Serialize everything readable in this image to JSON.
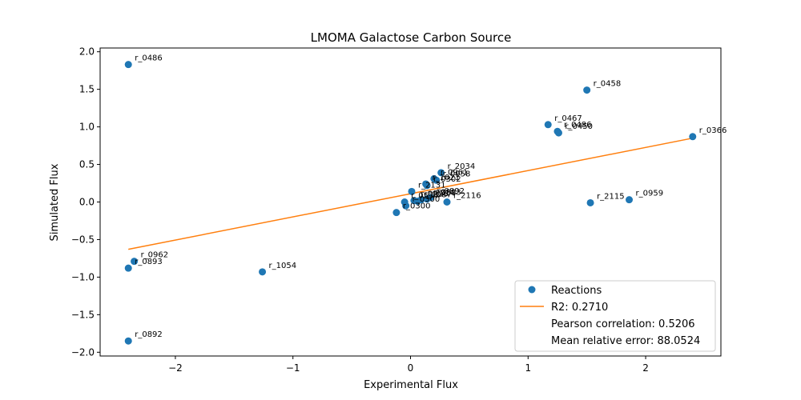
{
  "chart_data": {
    "type": "scatter",
    "title": "LMOMA Galactose Carbon Source",
    "xlabel": "Experimental Flux",
    "ylabel": "Simulated Flux",
    "xlim": [
      -2.64,
      2.64
    ],
    "ylim": [
      -2.05,
      2.05
    ],
    "x_ticks": [
      -2,
      -1,
      0,
      1,
      2
    ],
    "x_tick_labels": [
      "−2",
      "−1",
      "0",
      "1",
      "2"
    ],
    "y_ticks": [
      -2.0,
      -1.5,
      -1.0,
      -0.5,
      0.0,
      0.5,
      1.0,
      1.5,
      2.0
    ],
    "y_tick_labels": [
      "−2.0",
      "−1.5",
      "−1.0",
      "−0.5",
      "0.0",
      "0.5",
      "1.0",
      "1.5",
      "2.0"
    ],
    "grid": false,
    "legend_position": "bottom-right",
    "colors": {
      "points": "#1f77b4",
      "fit_line": "#ff7f0e"
    },
    "series": [
      {
        "name": "Reactions",
        "points": [
          {
            "label": "r_0486",
            "x": -2.4,
            "y": 1.83
          },
          {
            "label": "r_0458",
            "x": 1.5,
            "y": 1.49
          },
          {
            "label": "r_0467",
            "x": 1.17,
            "y": 1.03
          },
          {
            "label": "r_0486",
            "x": 1.25,
            "y": 0.94
          },
          {
            "label": "r_0450",
            "x": 1.26,
            "y": 0.92
          },
          {
            "label": "r_0366",
            "x": 2.4,
            "y": 0.87
          },
          {
            "label": "r_2034",
            "x": 0.26,
            "y": 0.39
          },
          {
            "label": "r_0958",
            "x": 0.22,
            "y": 0.29
          },
          {
            "label": "r_0961",
            "x": 0.2,
            "y": 0.31
          },
          {
            "label": "r_1021",
            "x": 0.13,
            "y": 0.24
          },
          {
            "label": "r_0302",
            "x": 0.14,
            "y": 0.22
          },
          {
            "label": "r_2131",
            "x": 0.01,
            "y": 0.14
          },
          {
            "label": "r_0892",
            "x": 0.17,
            "y": 0.06
          },
          {
            "label": "r_0893",
            "x": 0.14,
            "y": 0.04
          },
          {
            "label": "r_0714",
            "x": 0.09,
            "y": 0.03
          },
          {
            "label": "r_0226",
            "x": 0.03,
            "y": 0.02
          },
          {
            "label": "r_1087",
            "x": 0.06,
            "y": 0.01
          },
          {
            "label": "r_0534",
            "x": -0.05,
            "y": 0.0
          },
          {
            "label": "r_2116",
            "x": 0.31,
            "y": 0.0
          },
          {
            "label": "r_0300",
            "x": -0.04,
            "y": -0.05
          },
          {
            "label": "r_0300",
            "x": -0.12,
            "y": -0.14
          },
          {
            "label": "r_2115",
            "x": 1.53,
            "y": -0.01
          },
          {
            "label": "r_0959",
            "x": 1.86,
            "y": 0.03
          },
          {
            "label": "r_0962",
            "x": -2.35,
            "y": -0.79
          },
          {
            "label": "r_0893",
            "x": -2.4,
            "y": -0.88
          },
          {
            "label": "r_1054",
            "x": -1.26,
            "y": -0.93
          },
          {
            "label": "r_0892",
            "x": -2.4,
            "y": -1.85
          }
        ]
      }
    ],
    "fit_line": {
      "name": "R2: 0.2710",
      "x": [
        -2.4,
        2.4
      ],
      "y": [
        -0.63,
        0.85
      ]
    },
    "legend": [
      {
        "marker": "point",
        "label": "Reactions"
      },
      {
        "marker": "line",
        "label": "R2: 0.2710"
      },
      {
        "marker": "none",
        "label": "Pearson correlation: 0.5206"
      },
      {
        "marker": "none",
        "label": "Mean relative error: 88.0524"
      }
    ]
  }
}
